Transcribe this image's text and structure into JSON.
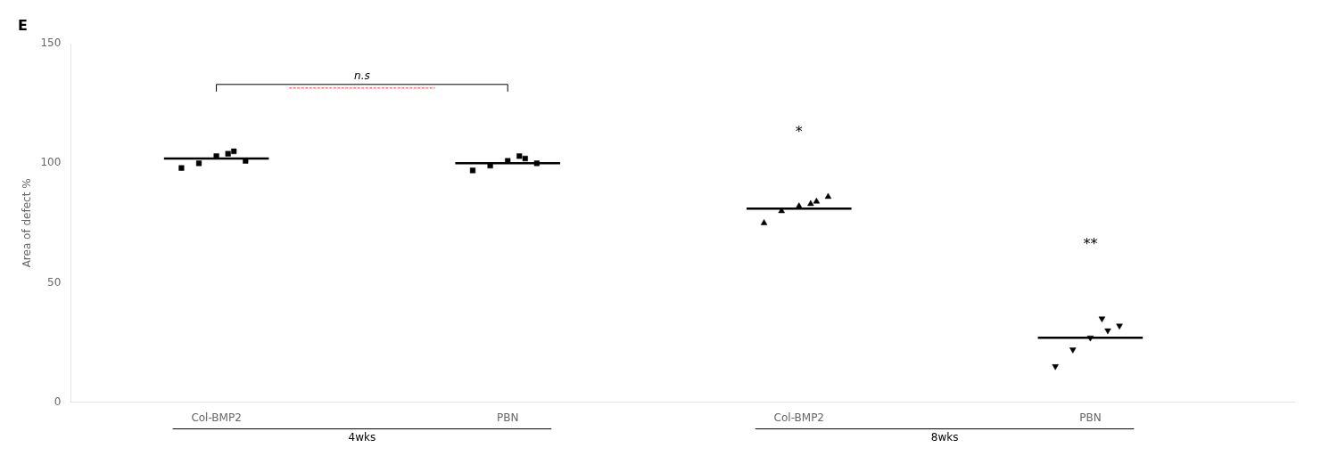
{
  "chart_data": {
    "type": "scatter",
    "title": "E",
    "ylabel": "Area of defect %",
    "x": [
      1,
      2,
      3,
      4
    ],
    "values": [
      [
        98,
        100,
        103,
        105,
        101,
        104
      ],
      [
        97,
        99,
        101,
        102,
        100,
        103
      ],
      [
        75,
        80,
        82,
        84,
        86,
        83
      ],
      [
        15,
        22,
        27,
        30,
        32,
        35
      ]
    ],
    "means": [
      102,
      100,
      81,
      27
    ],
    "marker": [
      "square",
      "square",
      "triangle_up",
      "triangle_down"
    ],
    "color": "#000000",
    "xlim": [
      0.5,
      4.7
    ],
    "xticks": [
      {
        "value": 1,
        "label": "Col-BMP2"
      },
      {
        "value": 2,
        "label": "PBN"
      },
      {
        "value": 3,
        "label": "Col-BMP2"
      },
      {
        "value": 4,
        "label": "PBN"
      }
    ],
    "ylim": [
      0,
      150
    ],
    "yticks": [
      0,
      50,
      100,
      150
    ],
    "grid": false,
    "annotations": [
      {
        "text": "n.s",
        "x": [
          1,
          2
        ],
        "y": 133
      },
      {
        "text": "*",
        "x": 3,
        "y": 110
      },
      {
        "text": "**",
        "x": 4,
        "y": 63
      },
      {
        "text": "4wks",
        "x": [
          1,
          2
        ]
      },
      {
        "text": "8wks",
        "x": [
          3,
          4
        ]
      }
    ]
  }
}
